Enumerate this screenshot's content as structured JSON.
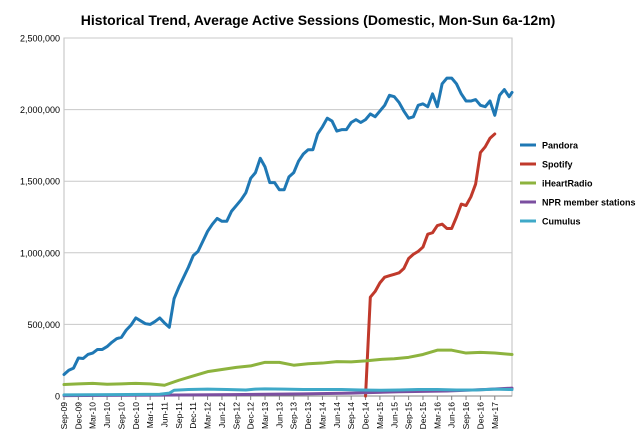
{
  "chart_data": {
    "type": "line",
    "title": "Historical Trend, Average Active Sessions (Domestic, Mon-Sun 6a-12m)",
    "xlabel": "",
    "ylabel": "",
    "ylim": [
      0,
      2500000
    ],
    "yticks": [
      0,
      500000,
      1000000,
      1500000,
      2000000,
      2500000
    ],
    "ytick_labels": [
      "0",
      "500,000",
      "1,000,000",
      "1,500,000",
      "2,000,000",
      "2,500,000"
    ],
    "grid": true,
    "legend_position": "right",
    "x_tick_labels": [
      "Sep-09",
      "Dec-09",
      "Mar-10",
      "Jun-10",
      "Sep-10",
      "Dec-10",
      "Mar-11",
      "Jun-11",
      "Sep-11",
      "Dec-11",
      "Mar-12",
      "Jun-12",
      "Sep-12",
      "Dec-12",
      "Mar-13",
      "Jun-13",
      "Sep-13",
      "Dec-13",
      "Mar-14",
      "Jun-14",
      "Sep-14",
      "Dec-14",
      "Mar-15",
      "Jun-15",
      "Sep-15",
      "Dec-15",
      "Mar-16",
      "Jun-16",
      "Sep-16",
      "Dec-16",
      "Mar-17"
    ],
    "x_months": 93,
    "series": [
      {
        "name": "Pandora",
        "color": "#1f78b4",
        "points": [
          [
            0,
            150000
          ],
          [
            1,
            180000
          ],
          [
            2,
            195000
          ],
          [
            3,
            265000
          ],
          [
            4,
            262000
          ],
          [
            5,
            290000
          ],
          [
            6,
            300000
          ],
          [
            7,
            325000
          ],
          [
            8,
            325000
          ],
          [
            9,
            345000
          ],
          [
            10,
            375000
          ],
          [
            11,
            400000
          ],
          [
            12,
            410000
          ],
          [
            13,
            460000
          ],
          [
            14,
            495000
          ],
          [
            15,
            545000
          ],
          [
            16,
            525000
          ],
          [
            17,
            505000
          ],
          [
            18,
            500000
          ],
          [
            19,
            520000
          ],
          [
            20,
            545000
          ],
          [
            21,
            510000
          ],
          [
            22,
            480000
          ],
          [
            23,
            680000
          ],
          [
            24,
            760000
          ],
          [
            25,
            830000
          ],
          [
            26,
            900000
          ],
          [
            27,
            980000
          ],
          [
            28,
            1010000
          ],
          [
            29,
            1080000
          ],
          [
            30,
            1150000
          ],
          [
            31,
            1200000
          ],
          [
            32,
            1240000
          ],
          [
            33,
            1220000
          ],
          [
            34,
            1220000
          ],
          [
            35,
            1290000
          ],
          [
            36,
            1330000
          ],
          [
            37,
            1370000
          ],
          [
            38,
            1420000
          ],
          [
            39,
            1520000
          ],
          [
            40,
            1560000
          ],
          [
            41,
            1660000
          ],
          [
            42,
            1600000
          ],
          [
            43,
            1490000
          ],
          [
            44,
            1490000
          ],
          [
            45,
            1440000
          ],
          [
            46,
            1440000
          ],
          [
            47,
            1530000
          ],
          [
            48,
            1560000
          ],
          [
            49,
            1640000
          ],
          [
            50,
            1690000
          ],
          [
            51,
            1720000
          ],
          [
            52,
            1720000
          ],
          [
            53,
            1830000
          ],
          [
            54,
            1880000
          ],
          [
            55,
            1940000
          ],
          [
            56,
            1920000
          ],
          [
            57,
            1850000
          ],
          [
            58,
            1860000
          ],
          [
            59,
            1860000
          ],
          [
            60,
            1910000
          ],
          [
            61,
            1930000
          ],
          [
            62,
            1910000
          ],
          [
            63,
            1930000
          ],
          [
            64,
            1970000
          ],
          [
            65,
            1950000
          ],
          [
            66,
            1990000
          ],
          [
            67,
            2030000
          ],
          [
            68,
            2100000
          ],
          [
            69,
            2090000
          ],
          [
            70,
            2050000
          ],
          [
            71,
            1990000
          ],
          [
            72,
            1940000
          ],
          [
            73,
            1950000
          ],
          [
            74,
            2030000
          ],
          [
            75,
            2040000
          ],
          [
            76,
            2020000
          ],
          [
            77,
            2110000
          ],
          [
            78,
            2020000
          ],
          [
            79,
            2180000
          ],
          [
            80,
            2220000
          ],
          [
            81,
            2220000
          ],
          [
            82,
            2180000
          ],
          [
            83,
            2110000
          ],
          [
            84,
            2060000
          ],
          [
            85,
            2060000
          ],
          [
            86,
            2070000
          ],
          [
            87,
            2030000
          ],
          [
            88,
            2020000
          ],
          [
            89,
            2060000
          ],
          [
            90,
            1960000
          ],
          [
            91,
            2100000
          ],
          [
            92,
            2140000
          ],
          [
            93,
            2090000
          ],
          [
            93.6,
            2120000
          ]
        ]
      },
      {
        "name": "Spotify",
        "color": "#c0392b",
        "points": [
          [
            63,
            0
          ],
          [
            64,
            690000
          ],
          [
            65,
            730000
          ],
          [
            66,
            790000
          ],
          [
            67,
            830000
          ],
          [
            68,
            840000
          ],
          [
            69,
            850000
          ],
          [
            70,
            860000
          ],
          [
            71,
            890000
          ],
          [
            72,
            960000
          ],
          [
            73,
            990000
          ],
          [
            74,
            1010000
          ],
          [
            75,
            1040000
          ],
          [
            76,
            1130000
          ],
          [
            77,
            1140000
          ],
          [
            78,
            1190000
          ],
          [
            79,
            1200000
          ],
          [
            80,
            1170000
          ],
          [
            81,
            1170000
          ],
          [
            82,
            1250000
          ],
          [
            83,
            1340000
          ],
          [
            84,
            1330000
          ],
          [
            85,
            1390000
          ],
          [
            86,
            1480000
          ],
          [
            87,
            1700000
          ],
          [
            88,
            1740000
          ],
          [
            89,
            1800000
          ],
          [
            90,
            1830000
          ]
        ]
      },
      {
        "name": "iHeartRadio",
        "color": "#8db33e",
        "points": [
          [
            0,
            80000
          ],
          [
            3,
            85000
          ],
          [
            6,
            88000
          ],
          [
            9,
            82000
          ],
          [
            12,
            85000
          ],
          [
            15,
            88000
          ],
          [
            18,
            85000
          ],
          [
            21,
            75000
          ],
          [
            24,
            110000
          ],
          [
            27,
            140000
          ],
          [
            30,
            170000
          ],
          [
            33,
            185000
          ],
          [
            36,
            200000
          ],
          [
            39,
            210000
          ],
          [
            42,
            235000
          ],
          [
            45,
            235000
          ],
          [
            48,
            215000
          ],
          [
            51,
            225000
          ],
          [
            54,
            230000
          ],
          [
            57,
            240000
          ],
          [
            60,
            238000
          ],
          [
            63,
            245000
          ],
          [
            66,
            255000
          ],
          [
            69,
            260000
          ],
          [
            72,
            270000
          ],
          [
            75,
            290000
          ],
          [
            78,
            320000
          ],
          [
            81,
            320000
          ],
          [
            84,
            300000
          ],
          [
            87,
            305000
          ],
          [
            90,
            300000
          ],
          [
            93.6,
            290000
          ]
        ]
      },
      {
        "name": "NPR member stations",
        "color": "#7b4fa0",
        "points": [
          [
            0,
            3000
          ],
          [
            20,
            6000
          ],
          [
            35,
            10000
          ],
          [
            50,
            15000
          ],
          [
            60,
            20000
          ],
          [
            70,
            30000
          ],
          [
            80,
            35000
          ],
          [
            88,
            45000
          ],
          [
            93.6,
            55000
          ]
        ]
      },
      {
        "name": "Cumulus",
        "color": "#3fa9c8",
        "points": [
          [
            0,
            8000
          ],
          [
            10,
            10000
          ],
          [
            20,
            12000
          ],
          [
            22,
            20000
          ],
          [
            23,
            40000
          ],
          [
            26,
            45000
          ],
          [
            30,
            48000
          ],
          [
            34,
            45000
          ],
          [
            38,
            42000
          ],
          [
            40,
            48000
          ],
          [
            42,
            50000
          ],
          [
            46,
            48000
          ],
          [
            50,
            45000
          ],
          [
            54,
            45000
          ],
          [
            58,
            45000
          ],
          [
            62,
            42000
          ],
          [
            66,
            40000
          ],
          [
            70,
            42000
          ],
          [
            74,
            45000
          ],
          [
            78,
            45000
          ],
          [
            82,
            42000
          ],
          [
            86,
            42000
          ],
          [
            90,
            48000
          ],
          [
            93.6,
            45000
          ]
        ]
      }
    ]
  }
}
